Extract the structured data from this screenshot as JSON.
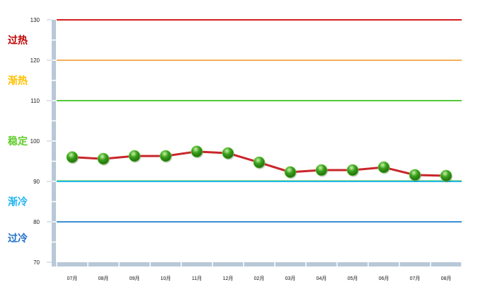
{
  "chart_data": {
    "type": "line",
    "categories": [
      "07月",
      "08月",
      "09月",
      "10月",
      "11月",
      "12月",
      "02月",
      "03月",
      "04月",
      "05月",
      "06月",
      "07月",
      "08月"
    ],
    "series": [
      {
        "values": [
          96.0,
          95.6,
          96.3,
          96.3,
          97.4,
          97.0,
          94.7,
          92.3,
          92.8,
          92.8,
          93.5,
          91.6,
          91.4
        ],
        "color": "#c8262b",
        "marker_color": "#3aa11c"
      }
    ],
    "ylim": [
      70,
      130
    ],
    "yticks": [
      70,
      80,
      90,
      100,
      110,
      120,
      130
    ],
    "grid": false,
    "reference_lines": [
      {
        "value": 130,
        "color": "#d21f1f"
      },
      {
        "value": 120,
        "color": "#f5b05a"
      },
      {
        "value": 110,
        "color": "#56c93a"
      },
      {
        "value": 90,
        "color": "#22b8e8"
      },
      {
        "value": 80,
        "color": "#3a8fd6"
      }
    ],
    "zones": [
      {
        "label": "过热",
        "color": "#c00000"
      },
      {
        "label": "渐热",
        "color": "#ffc000"
      },
      {
        "label": "稳定",
        "color": "#5fcc2a"
      },
      {
        "label": "渐冷",
        "color": "#1fb4f0"
      },
      {
        "label": "过冷",
        "color": "#1f6fc8"
      }
    ]
  }
}
